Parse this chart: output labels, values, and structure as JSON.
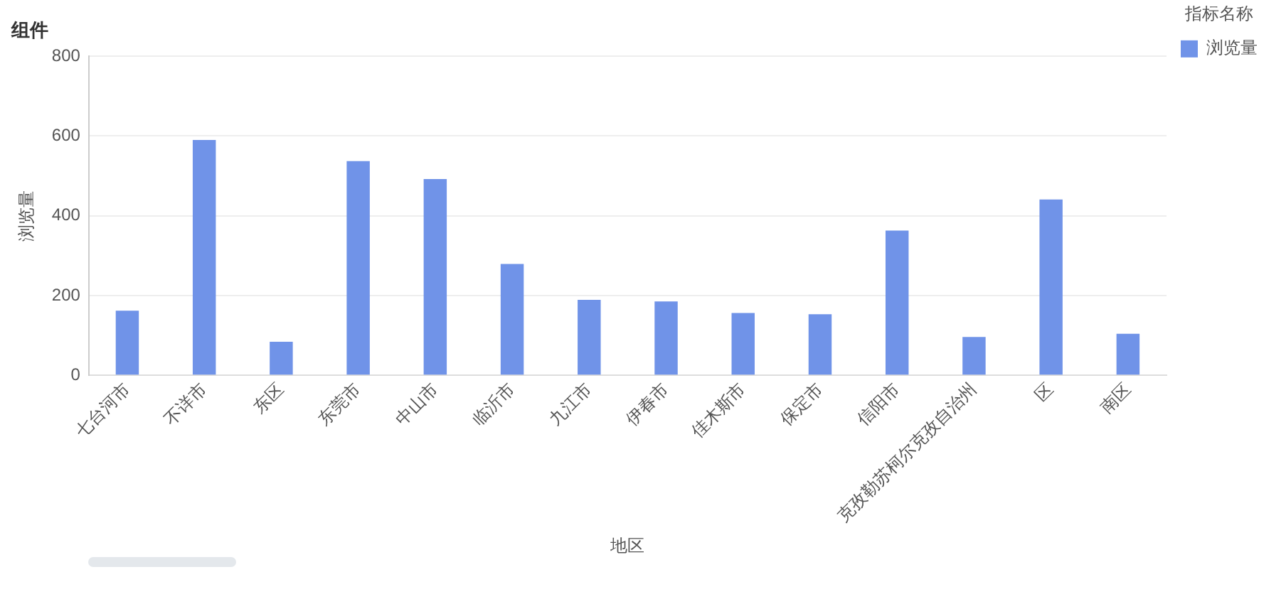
{
  "chart_data": {
    "type": "bar",
    "title": "组件",
    "xlabel": "地区",
    "ylabel": "浏览量",
    "legend_title": "指标名称",
    "categories": [
      "七台河市",
      "不详市",
      "东区",
      "东莞市",
      "中山市",
      "临沂市",
      "九江市",
      "伊春市",
      "佳木斯市",
      "保定市",
      "信阳市",
      "克孜勒苏柯尔克孜自治州",
      "区",
      "南区"
    ],
    "series": [
      {
        "name": "浏览量",
        "color": "#7093e8",
        "values": [
          162,
          590,
          84,
          537,
          492,
          279,
          189,
          185,
          156,
          153,
          363,
          96,
          441,
          104
        ]
      }
    ],
    "ylim": [
      0,
      800
    ],
    "yticks": [
      0,
      200,
      400,
      600,
      800
    ],
    "grid": "y",
    "legend": "top right"
  }
}
